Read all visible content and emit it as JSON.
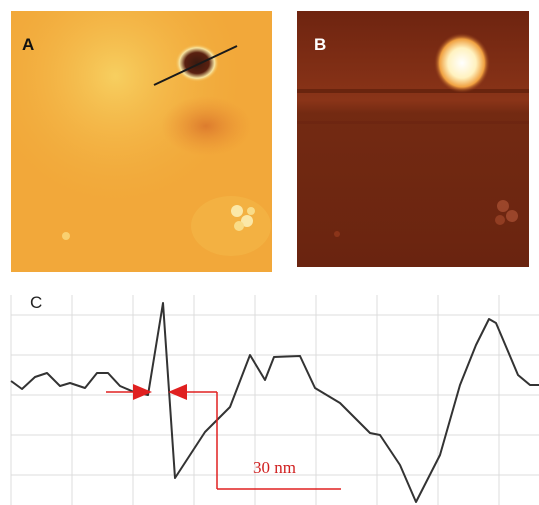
{
  "panels": {
    "a": {
      "label": "A"
    },
    "b": {
      "label": "B"
    },
    "c": {
      "label": "C"
    }
  },
  "annotation": {
    "distance_label": "30 nm"
  },
  "colors": {
    "panel_a_base": "#f2a83a",
    "panel_a_light": "#f7cf60",
    "panel_b_base": "#7a2a10",
    "panel_b_bright": "#fff6d0",
    "profile_line": "#333333",
    "arrow": "#e02020",
    "grid": "#dddddd"
  }
}
